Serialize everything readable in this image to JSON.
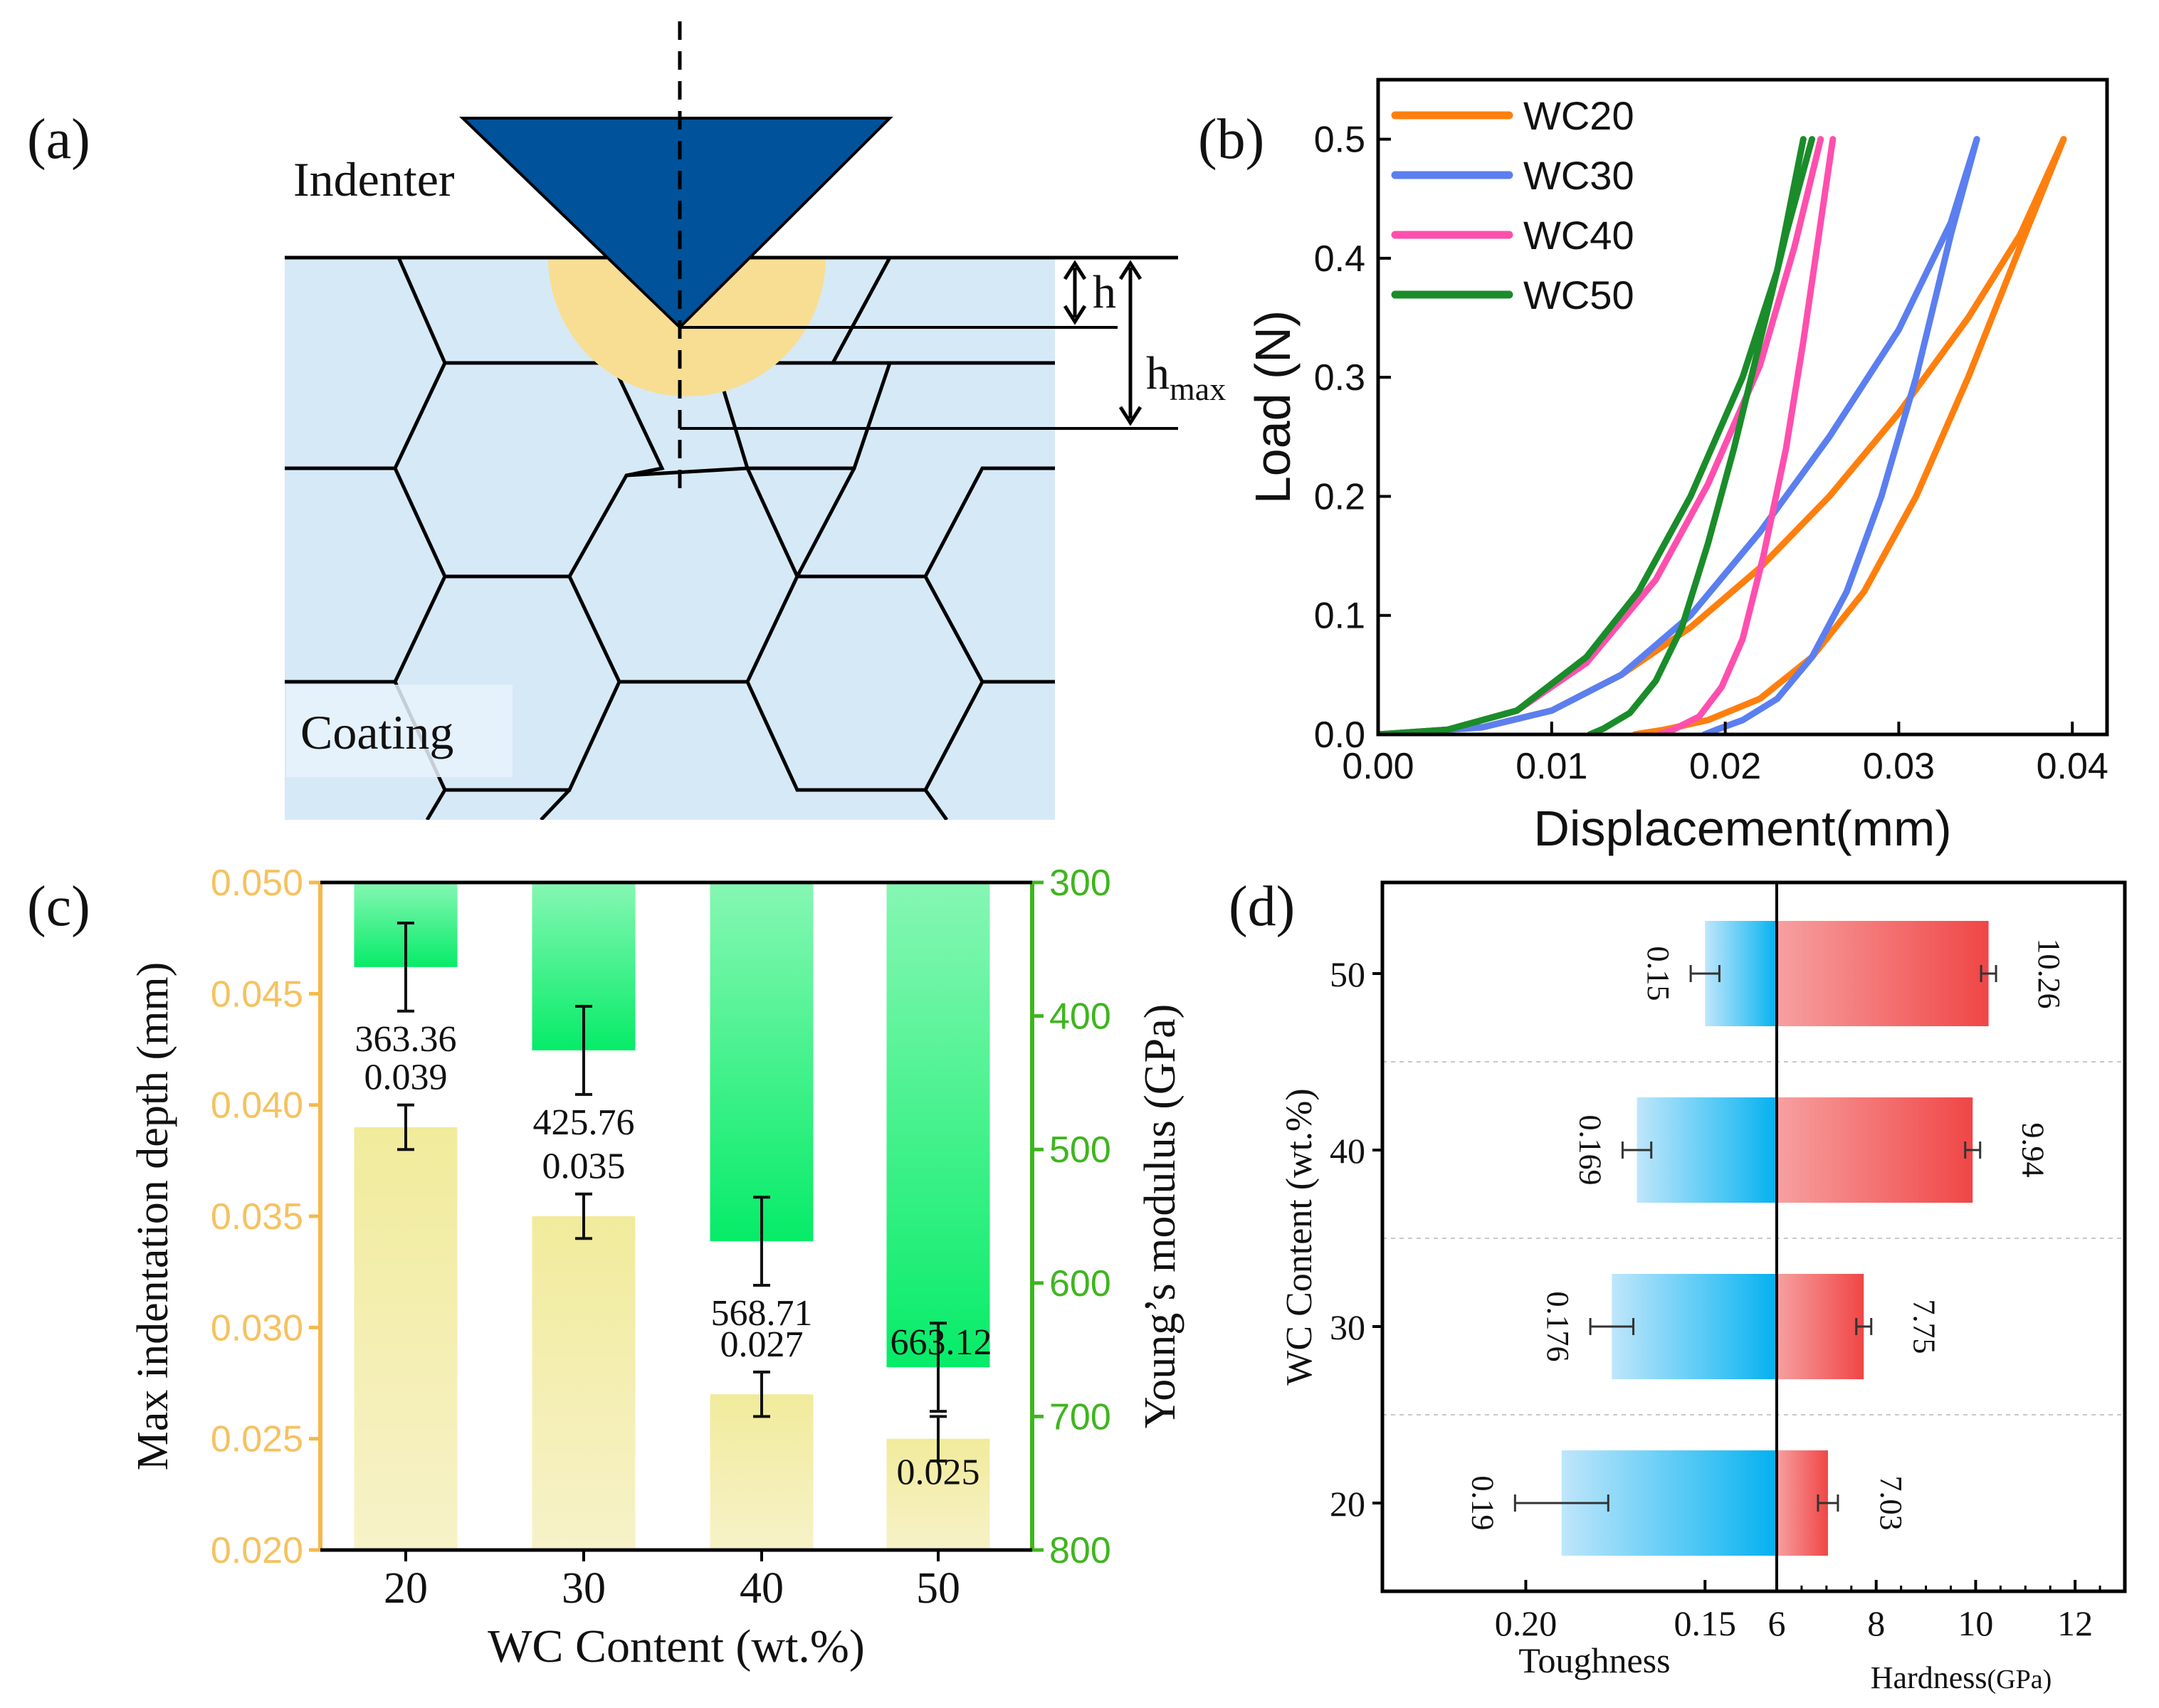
{
  "panels": {
    "a": {
      "label": "(a)",
      "indenter_label": "Indenter",
      "coating_label": "Coating",
      "h_label": "h",
      "hmax_main": "h",
      "hmax_sub": "max",
      "colors": {
        "indenter": "#00529b",
        "coating": "#d6e9f7",
        "plastic_zone": "#f8de93",
        "lines": "#000000"
      }
    },
    "b": {
      "label": "(b)"
    },
    "c": {
      "label": "(c)"
    },
    "d": {
      "label": "(d)"
    }
  },
  "chart_data": [
    {
      "panel": "b",
      "type": "line",
      "title": "",
      "xlabel": "Displacement(mm)",
      "ylabel": "Load (N)",
      "xlim": [
        0,
        0.042
      ],
      "ylim": [
        0,
        0.55
      ],
      "xticks": [
        "0.00",
        "0.01",
        "0.02",
        "0.03",
        "0.04"
      ],
      "yticks": [
        "0.0",
        "0.1",
        "0.2",
        "0.3",
        "0.4",
        "0.5"
      ],
      "legend_position": "top-left",
      "series": [
        {
          "name": "WC20",
          "color": "#ff7f0e",
          "loading": [
            [
              0.0,
              0.0
            ],
            [
              0.006,
              0.006
            ],
            [
              0.01,
              0.02
            ],
            [
              0.014,
              0.05
            ],
            [
              0.018,
              0.09
            ],
            [
              0.022,
              0.14
            ],
            [
              0.026,
              0.2
            ],
            [
              0.03,
              0.27
            ],
            [
              0.034,
              0.35
            ],
            [
              0.037,
              0.42
            ],
            [
              0.0395,
              0.5
            ]
          ],
          "unloading": [
            [
              0.0395,
              0.5
            ],
            [
              0.037,
              0.41
            ],
            [
              0.034,
              0.3
            ],
            [
              0.031,
              0.2
            ],
            [
              0.028,
              0.12
            ],
            [
              0.025,
              0.065
            ],
            [
              0.022,
              0.03
            ],
            [
              0.019,
              0.012
            ],
            [
              0.0165,
              0.004
            ],
            [
              0.0148,
              0.0
            ]
          ]
        },
        {
          "name": "WC30",
          "color": "#5b7ff0",
          "loading": [
            [
              0.0,
              0.0
            ],
            [
              0.006,
              0.006
            ],
            [
              0.01,
              0.02
            ],
            [
              0.014,
              0.05
            ],
            [
              0.018,
              0.1
            ],
            [
              0.022,
              0.17
            ],
            [
              0.026,
              0.25
            ],
            [
              0.03,
              0.34
            ],
            [
              0.033,
              0.43
            ],
            [
              0.0345,
              0.5
            ]
          ],
          "unloading": [
            [
              0.0345,
              0.5
            ],
            [
              0.033,
              0.42
            ],
            [
              0.031,
              0.3
            ],
            [
              0.029,
              0.2
            ],
            [
              0.027,
              0.12
            ],
            [
              0.025,
              0.065
            ],
            [
              0.023,
              0.03
            ],
            [
              0.021,
              0.012
            ],
            [
              0.0195,
              0.004
            ],
            [
              0.0188,
              0.0
            ]
          ]
        },
        {
          "name": "WC40",
          "color": "#ff4fae",
          "loading": [
            [
              0.0,
              0.0
            ],
            [
              0.004,
              0.004
            ],
            [
              0.008,
              0.02
            ],
            [
              0.012,
              0.06
            ],
            [
              0.016,
              0.13
            ],
            [
              0.019,
              0.21
            ],
            [
              0.022,
              0.31
            ],
            [
              0.024,
              0.41
            ],
            [
              0.0255,
              0.5
            ]
          ],
          "unloading": [
            [
              0.0262,
              0.5
            ],
            [
              0.0255,
              0.43
            ],
            [
              0.0245,
              0.33
            ],
            [
              0.0235,
              0.24
            ],
            [
              0.0222,
              0.15
            ],
            [
              0.021,
              0.08
            ],
            [
              0.0198,
              0.04
            ],
            [
              0.0185,
              0.015
            ],
            [
              0.017,
              0.004
            ],
            [
              0.0162,
              0.0
            ]
          ]
        },
        {
          "name": "WC50",
          "color": "#1a8c2a",
          "loading": [
            [
              0.0,
              0.0
            ],
            [
              0.004,
              0.004
            ],
            [
              0.008,
              0.02
            ],
            [
              0.012,
              0.065
            ],
            [
              0.015,
              0.12
            ],
            [
              0.018,
              0.2
            ],
            [
              0.021,
              0.3
            ],
            [
              0.023,
              0.39
            ],
            [
              0.0245,
              0.5
            ]
          ],
          "unloading": [
            [
              0.025,
              0.5
            ],
            [
              0.0235,
              0.42
            ],
            [
              0.022,
              0.33
            ],
            [
              0.0205,
              0.24
            ],
            [
              0.019,
              0.16
            ],
            [
              0.0175,
              0.09
            ],
            [
              0.016,
              0.045
            ],
            [
              0.0145,
              0.018
            ],
            [
              0.013,
              0.005
            ],
            [
              0.0122,
              0.0
            ]
          ]
        }
      ]
    },
    {
      "panel": "c",
      "type": "bar",
      "title": "",
      "xlabel": "WC Content (wt.%)",
      "ylabel": "Max indentation depth (mm)",
      "y2label": "Young’s modulus (GPa)",
      "categories": [
        "20",
        "30",
        "40",
        "50"
      ],
      "ylim": [
        0.02,
        0.05
      ],
      "y2lim": [
        300,
        800
      ],
      "y2_inverted": true,
      "yticks": [
        "0.020",
        "0.025",
        "0.030",
        "0.035",
        "0.040",
        "0.045",
        "0.050"
      ],
      "y2ticks": [
        "300",
        "400",
        "500",
        "600",
        "700",
        "800"
      ],
      "series": [
        {
          "name": "Max indentation depth",
          "axis": "left",
          "color": "#f1eca0",
          "values": [
            0.039,
            0.035,
            0.027,
            0.025
          ],
          "labels": [
            "0.039",
            "0.035",
            "0.027",
            "0.025"
          ],
          "errors": [
            0.001,
            0.001,
            0.001,
            0.001
          ]
        },
        {
          "name": "Young’s modulus",
          "axis": "right",
          "color": "#10ee70",
          "values": [
            363.36,
            425.76,
            568.71,
            663.12
          ],
          "labels": [
            "363.36",
            "425.76",
            "568.71",
            "663.12"
          ],
          "errors": [
            15,
            15,
            15,
            15
          ]
        }
      ]
    },
    {
      "panel": "d",
      "type": "bar",
      "orientation": "horizontal",
      "title": "",
      "ylabel": "WC Content (wt.%)",
      "categories": [
        "20",
        "30",
        "40",
        "50"
      ],
      "left_axis": {
        "label": "Toughness",
        "lim": [
          0.24,
          0.13
        ],
        "ticks": [
          "0.20",
          "0.15"
        ]
      },
      "right_axis": {
        "label": "Hardness",
        "unit": "(GPa)",
        "lim": [
          6,
          13
        ],
        "ticks": [
          "6",
          "8",
          "10",
          "12"
        ]
      },
      "series": [
        {
          "name": "Toughness",
          "side": "left",
          "color": "#0cb2ef",
          "values": [
            0.19,
            0.176,
            0.169,
            0.15
          ],
          "labels": [
            "0.19",
            "0.176",
            "0.169",
            "0.15"
          ],
          "errors": [
            0.013,
            0.006,
            0.004,
            0.004
          ]
        },
        {
          "name": "Hardness",
          "side": "right",
          "color": "#f24e4e",
          "values": [
            7.03,
            7.75,
            9.94,
            10.26
          ],
          "labels": [
            "7.03",
            "7.75",
            "9.94",
            "10.26"
          ],
          "errors": [
            0.2,
            0.15,
            0.15,
            0.15
          ]
        }
      ]
    }
  ]
}
